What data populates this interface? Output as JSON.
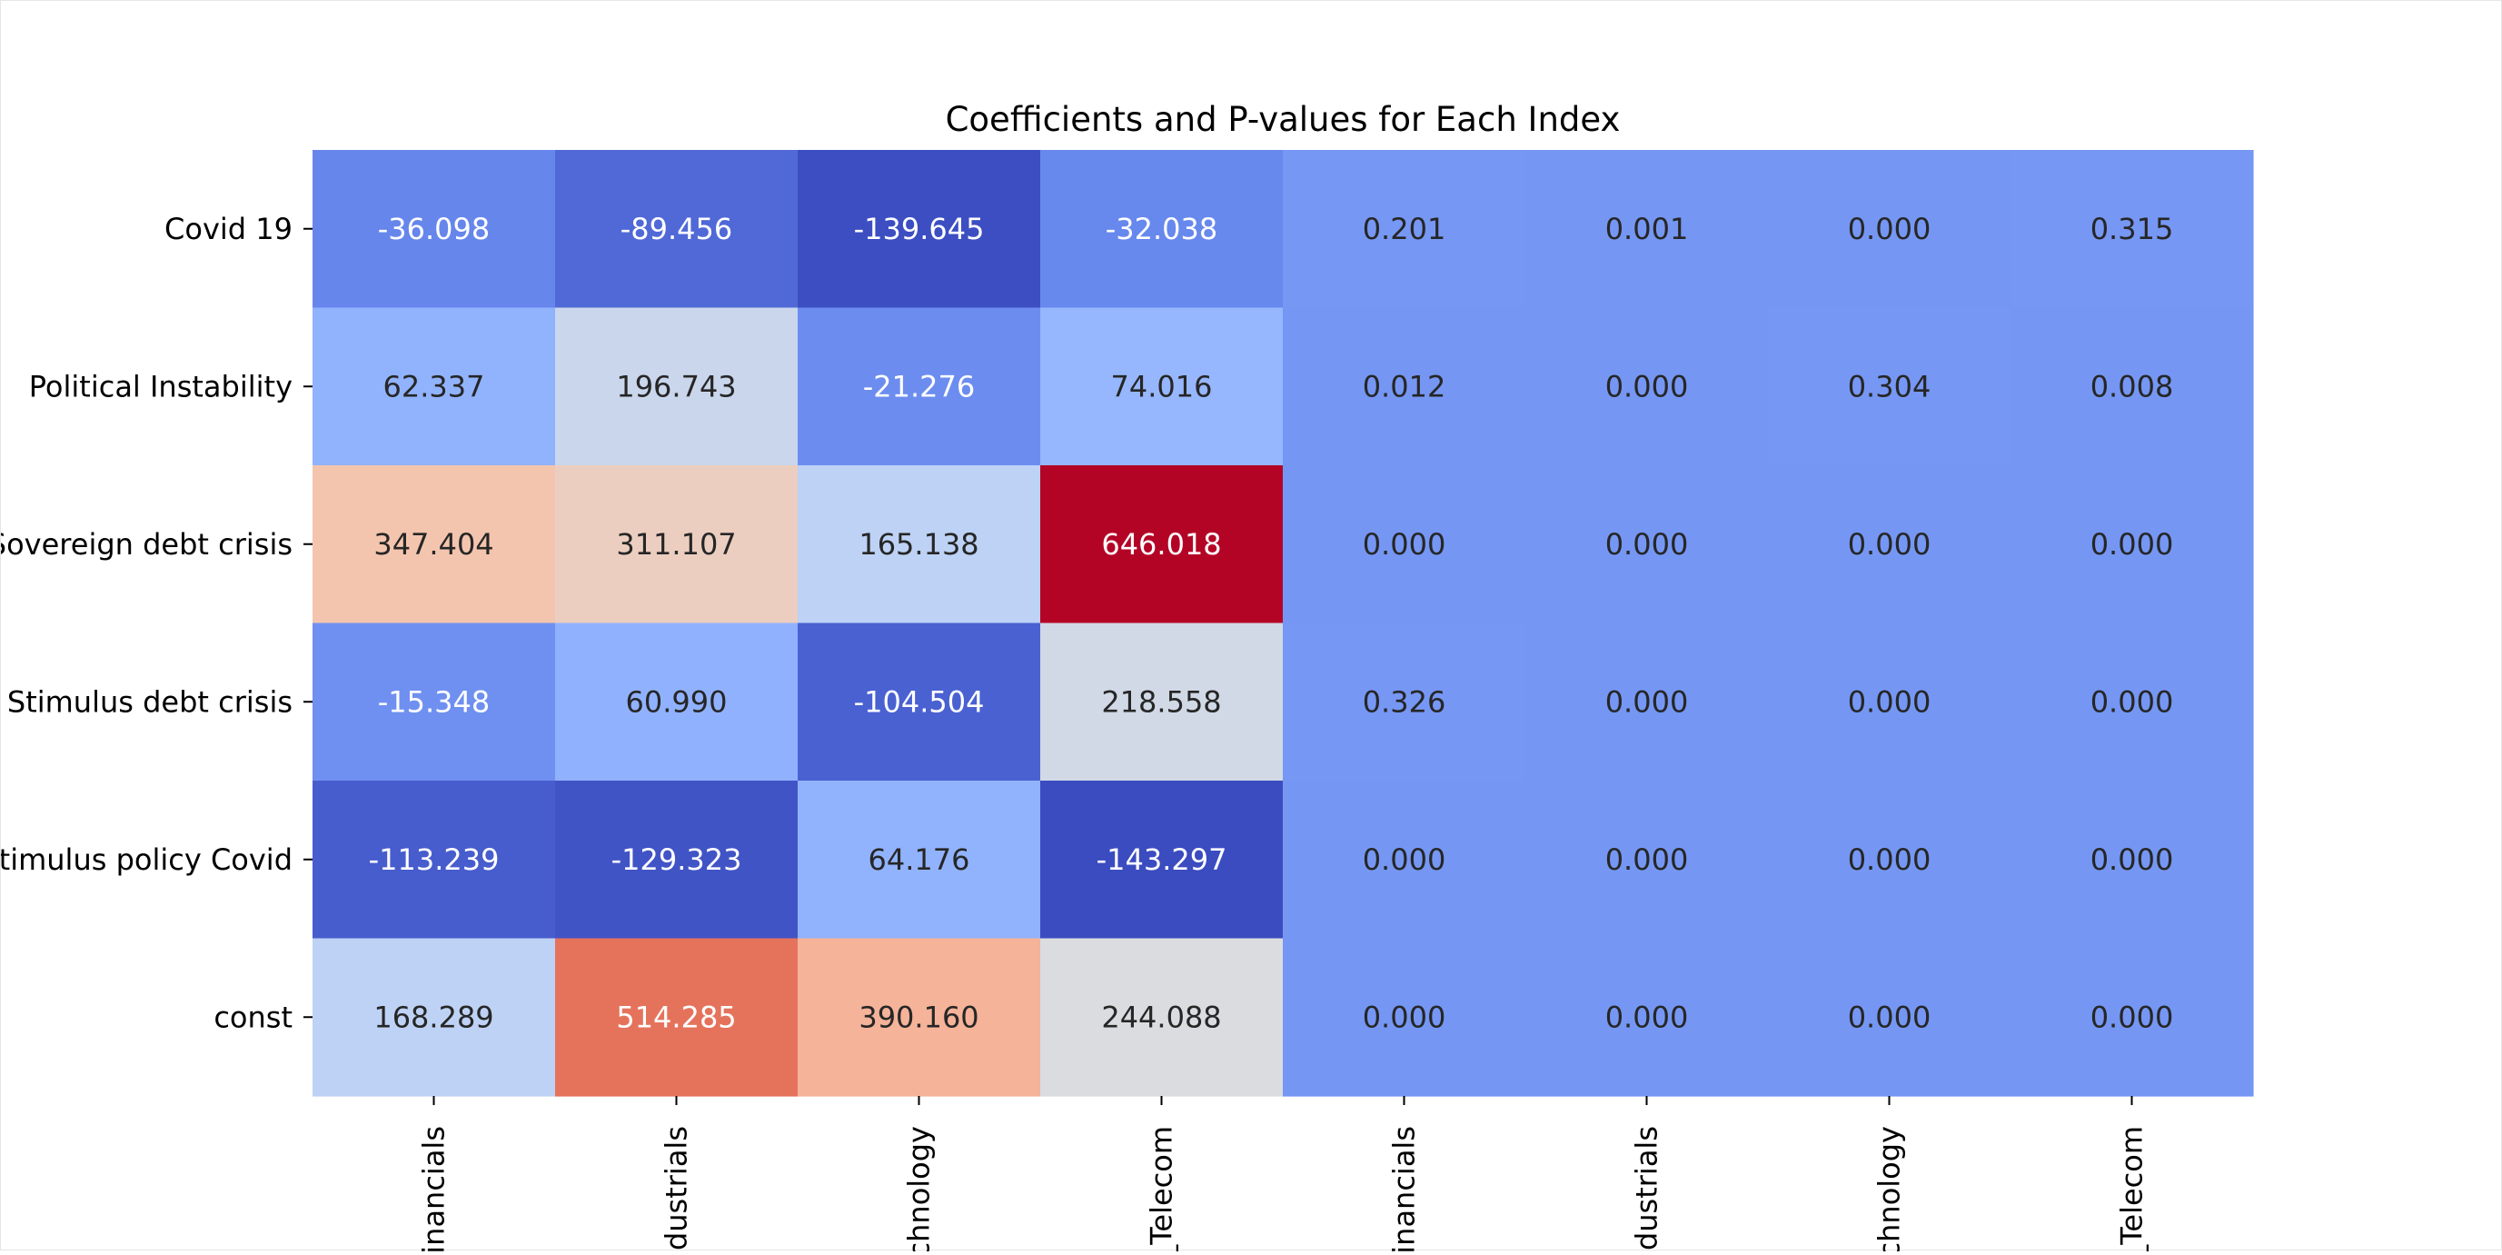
{
  "chart_data": {
    "type": "heatmap",
    "title": "Coefficients and P-values for Each Index",
    "rows": [
      "Covid 19",
      "Political Instability",
      "Sovereign debt crisis",
      "Stimulus debt crisis",
      "Stimulus policy Covid",
      "const"
    ],
    "columns": [
      "_Financials",
      "_Industrials",
      "_Technology",
      "_Telecom",
      "_Financials",
      "_Industrials",
      "_Technology",
      "_Telecom"
    ],
    "coefficients": [
      [
        -36.098,
        -89.456,
        -139.645,
        -32.038
      ],
      [
        62.337,
        196.743,
        -21.276,
        74.016
      ],
      [
        347.404,
        311.107,
        165.138,
        646.018
      ],
      [
        -15.348,
        60.99,
        -104.504,
        218.558
      ],
      [
        -113.239,
        -129.323,
        64.176,
        -143.297
      ],
      [
        168.289,
        514.285,
        390.16,
        244.088
      ]
    ],
    "p_values": [
      [
        0.201,
        0.001,
        0.0,
        0.315
      ],
      [
        0.012,
        0.0,
        0.304,
        0.008
      ],
      [
        0.0,
        0.0,
        0.0,
        0.0
      ],
      [
        0.326,
        0.0,
        0.0,
        0.0
      ],
      [
        0.0,
        0.0,
        0.0,
        0.0
      ],
      [
        0.0,
        0.0,
        0.0,
        0.0
      ]
    ],
    "value_format": "0.000",
    "colormap": "coolwarm",
    "color_range": [
      -143.297,
      646.018
    ],
    "colorbar": false
  }
}
